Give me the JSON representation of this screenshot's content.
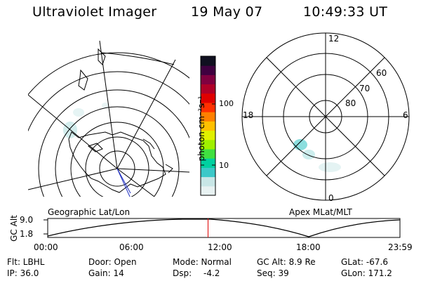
{
  "header": {
    "title": "Ultraviolet Imager",
    "date": "19 May 07",
    "time": "10:49:33 UT"
  },
  "colorbar": {
    "label": "photon cm⁻²s⁻¹",
    "ticks": [
      "100",
      "10"
    ],
    "colors": [
      "#e8f2f2",
      "#c8e6e6",
      "#3cc8c8",
      "#00d0a0",
      "#40e040",
      "#a0f000",
      "#e0f000",
      "#ffc000",
      "#ff8000",
      "#ff3000",
      "#e00000",
      "#b00028",
      "#800040",
      "#400040",
      "#101020"
    ]
  },
  "geo_map": {
    "label": "Geographic Lat/Lon"
  },
  "polar_plot": {
    "label": "Apex MLat/MLT",
    "mlt_labels": {
      "top": "12",
      "left": "18",
      "right": "6",
      "bottom": "0"
    },
    "lat_labels": [
      "60",
      "70",
      "80"
    ]
  },
  "timeline": {
    "ylabel": "GC Alt",
    "ymax": "9.0",
    "ymin": "1.8",
    "xticks": [
      "00:00",
      "06:00",
      "12:00",
      "18:00",
      "23:59"
    ],
    "current_fraction": 0.4552,
    "marker_color": "#e00000"
  },
  "info": {
    "filter": "Flt: LBHL",
    "door": "Door: Open",
    "mode": "Mode: Normal",
    "gc_alt": "GC Alt: 8.9 Re",
    "glat": "GLat: -67.6",
    "ip": "IP: 36.0",
    "gain": "Gain: 14",
    "dsp_label": "Dsp:",
    "dsp_value": "-4.2",
    "seq": "Seq: 39",
    "glon": "GLon: 171.2"
  }
}
